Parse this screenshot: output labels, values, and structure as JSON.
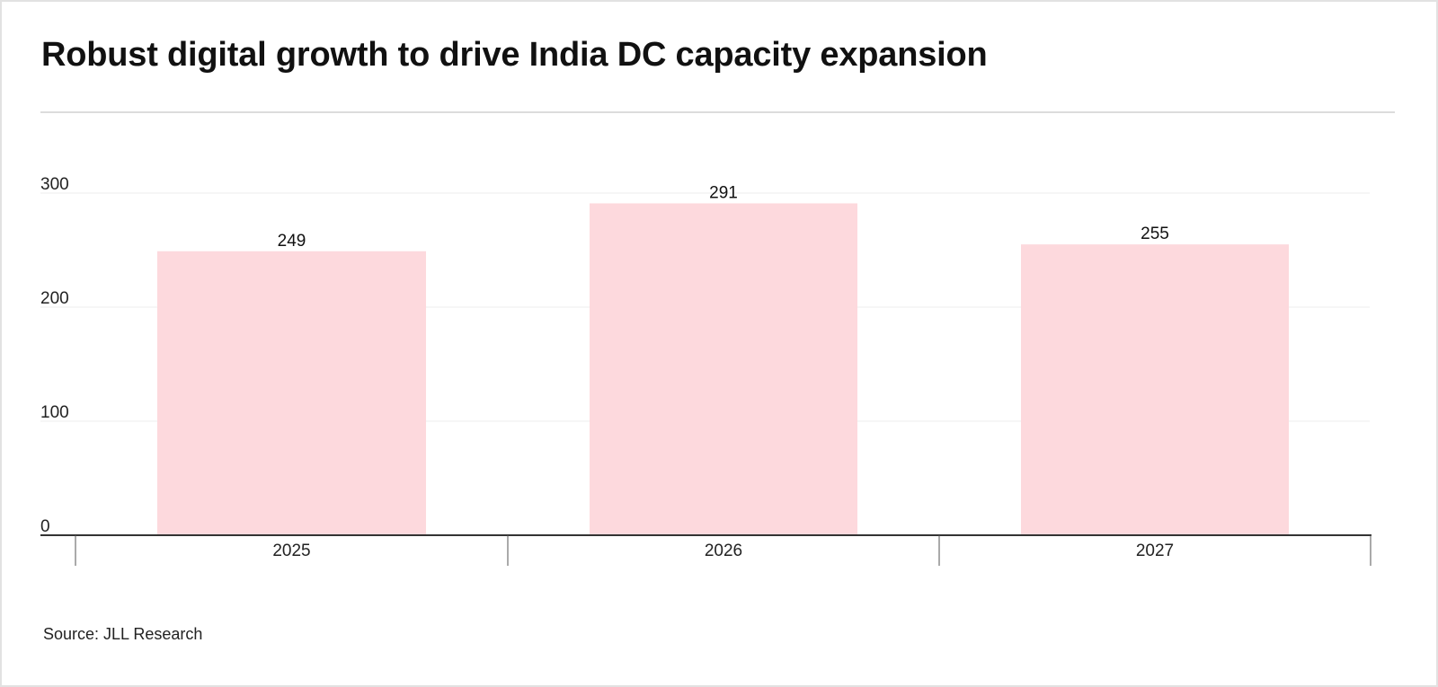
{
  "chart_data": {
    "type": "bar",
    "title": "Robust digital growth to drive India DC capacity expansion",
    "categories": [
      "2025",
      "2026",
      "2027"
    ],
    "values": [
      249,
      291,
      255
    ],
    "data_labels": [
      "249",
      "291",
      "255"
    ],
    "xlabel": "",
    "ylabel": "",
    "ylim": [
      0,
      300
    ],
    "yticks": [
      0,
      100,
      200,
      300
    ],
    "ytick_labels": [
      "0",
      "100",
      "200",
      "300"
    ],
    "grid": true,
    "bar_color": "#fdd9dd",
    "grid_color": "#ececec",
    "axis_color": "#333333",
    "source": "Source: JLL Research"
  }
}
